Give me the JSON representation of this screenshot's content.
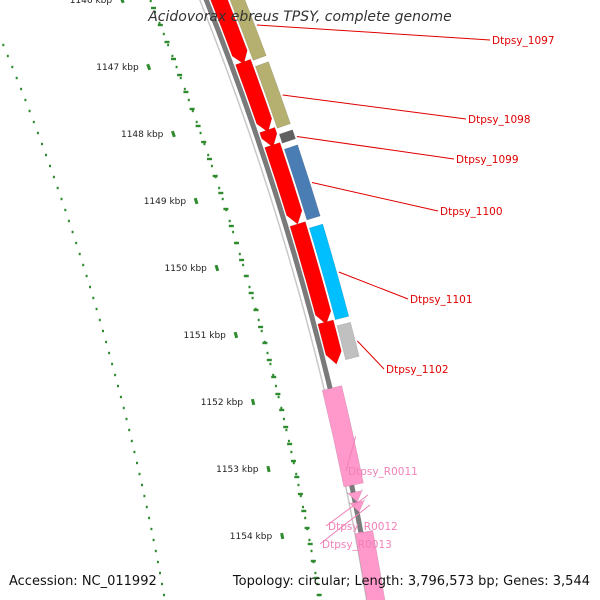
{
  "title": "Acidovorax ebreus TPSY, complete genome",
  "accession": "Accession: NC_011992",
  "summary": "Topology: circular; Length: 3,796,573 bp; Genes: 3,544",
  "colors": {
    "backbone": "#8a8a8a",
    "cds": "#ff0000",
    "rna": "#ff99cc",
    "ticks": "#2e8b2e"
  },
  "scale_ticks": [
    {
      "kbp": 1146,
      "label": "1146 kbp"
    },
    {
      "kbp": 1147,
      "label": "1147 kbp"
    },
    {
      "kbp": 1148,
      "label": "1148 kbp"
    },
    {
      "kbp": 1149,
      "label": "1149 kbp"
    },
    {
      "kbp": 1150,
      "label": "1150 kbp"
    },
    {
      "kbp": 1151,
      "label": "1151 kbp"
    },
    {
      "kbp": 1152,
      "label": "1152 kbp"
    },
    {
      "kbp": 1153,
      "label": "1153 kbp"
    },
    {
      "kbp": 1154,
      "label": "1154 kbp"
    }
  ],
  "features": [
    {
      "label": "Dtpsy_1097",
      "type": "CDS",
      "cog_color": "#b5b070"
    },
    {
      "label": "Dtpsy_1098",
      "type": "CDS",
      "cog_color": "#b5b070"
    },
    {
      "label": "Dtpsy_1099",
      "type": "CDS",
      "cog_color": "#606060"
    },
    {
      "label": "Dtpsy_1100",
      "type": "CDS",
      "cog_color": "#4a7db4"
    },
    {
      "label": "Dtpsy_1101",
      "type": "CDS",
      "cog_color": "#00bfff"
    },
    {
      "label": "Dtpsy_1102",
      "type": "CDS",
      "cog_color": "#c0c0c0"
    },
    {
      "label": "Dtpsy_R0011",
      "type": "rRNA",
      "cog_color": "#ff99cc"
    },
    {
      "label": "Dtpsy_R0012",
      "type": "tRNA",
      "cog_color": "#ff99cc"
    },
    {
      "label": "Dtpsy_R0013",
      "type": "tRNA",
      "cog_color": "#ff99cc"
    }
  ]
}
